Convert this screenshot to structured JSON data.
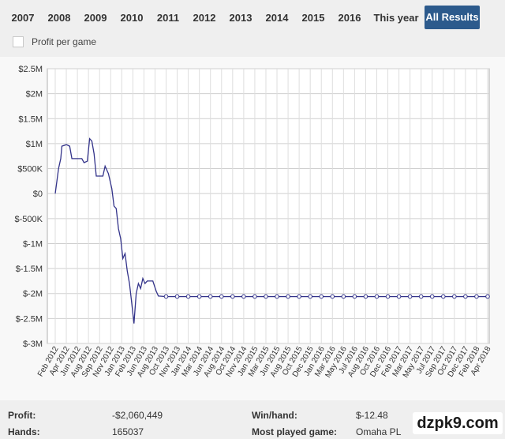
{
  "year_tabs": [
    "2007",
    "2008",
    "2009",
    "2010",
    "2011",
    "2012",
    "2013",
    "2014",
    "2015",
    "2016",
    "This year",
    "All Results"
  ],
  "active_tab": "All Results",
  "profit_per_game_label": "Profit per game",
  "chart_data": {
    "type": "line",
    "y_ticks": [
      "$2.5M",
      "$2M",
      "$1.5M",
      "$1M",
      "$500K",
      "$0",
      "$-500K",
      "$-1M",
      "$-1.5M",
      "$-2M",
      "$-2.5M",
      "$-3M"
    ],
    "ylim": [
      -3000000,
      2500000
    ],
    "x_ticks": [
      "Feb 2012",
      "Apr 2012",
      "Jun 2012",
      "Aug 2012",
      "Sep 2012",
      "Nov 2012",
      "Jan 2013",
      "Feb 2013",
      "Jun 2013",
      "Aug 2013",
      "Oct 2013",
      "Nov 2013",
      "Jan 2014",
      "Mar 2014",
      "Jun 2014",
      "Aug 2014",
      "Oct 2014",
      "Nov 2014",
      "Jan 2015",
      "Mar 2015",
      "Jun 2015",
      "Aug 2015",
      "Oct 2015",
      "Dec 2015",
      "Jan 2016",
      "Mar 2016",
      "May 2016",
      "Jul 2016",
      "Aug 2016",
      "Oct 2016",
      "Dec 2016",
      "Feb 2017",
      "Mar 2017",
      "May 2017",
      "Jul 2017",
      "Sep 2017",
      "Oct 2017",
      "Dec 2017",
      "Feb 2018",
      "Apr 2018"
    ],
    "series": [
      {
        "color": "#33338a",
        "points": [
          [
            0,
            0
          ],
          [
            0.3,
            500000
          ],
          [
            0.5,
            700000
          ],
          [
            0.6,
            950000
          ],
          [
            1.0,
            980000
          ],
          [
            1.3,
            950000
          ],
          [
            1.5,
            700000
          ],
          [
            2.4,
            700000
          ],
          [
            2.6,
            620000
          ],
          [
            2.9,
            650000
          ],
          [
            3.1,
            1100000
          ],
          [
            3.3,
            1050000
          ],
          [
            3.5,
            800000
          ],
          [
            3.7,
            350000
          ],
          [
            4.3,
            350000
          ],
          [
            4.5,
            550000
          ],
          [
            4.8,
            400000
          ],
          [
            5.1,
            100000
          ],
          [
            5.3,
            -250000
          ],
          [
            5.5,
            -300000
          ],
          [
            5.7,
            -700000
          ],
          [
            5.9,
            -900000
          ],
          [
            6.1,
            -1300000
          ],
          [
            6.3,
            -1200000
          ],
          [
            6.5,
            -1550000
          ],
          [
            6.7,
            -1800000
          ],
          [
            6.9,
            -2200000
          ],
          [
            7.1,
            -2600000
          ],
          [
            7.3,
            -2000000
          ],
          [
            7.5,
            -1800000
          ],
          [
            7.7,
            -1900000
          ],
          [
            7.9,
            -1700000
          ],
          [
            8.1,
            -1800000
          ],
          [
            8.3,
            -1750000
          ],
          [
            8.8,
            -1750000
          ],
          [
            9.1,
            -1950000
          ],
          [
            9.3,
            -2050000
          ],
          [
            10,
            -2060449
          ],
          [
            39,
            -2060449
          ]
        ],
        "markers_from_x": 10
      }
    ]
  },
  "stats": {
    "profit_label": "Profit:",
    "profit_value": "-$2,060,449",
    "hands_label": "Hands:",
    "hands_value": "165037",
    "winhand_label": "Win/hand:",
    "winhand_value": "$-12.48",
    "most_played_label": "Most played game:",
    "most_played_value": "Omaha PL"
  },
  "watermark": "dzpk9.com"
}
